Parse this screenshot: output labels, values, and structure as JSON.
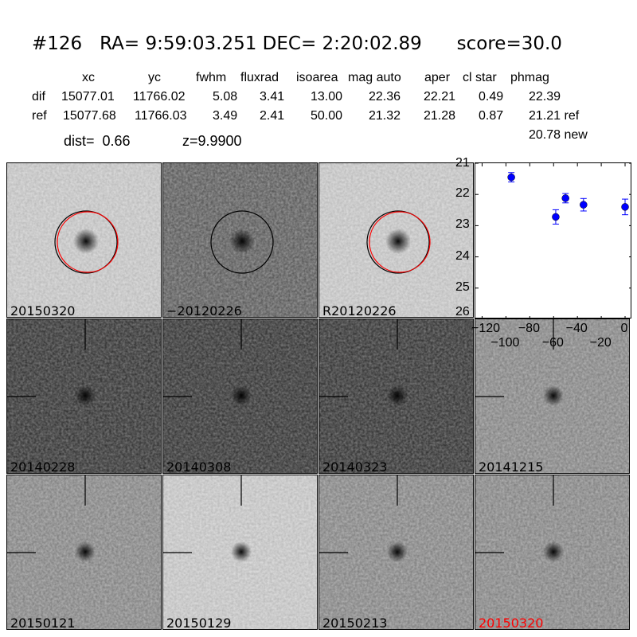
{
  "header": {
    "title": "#126   RA= 9:59:03.251 DEC= 2:20:02.89      score=30.0",
    "columns": [
      "xc",
      "yc",
      "fwhm",
      "fluxrad",
      "isoarea",
      "mag auto",
      "aper",
      "cl star",
      "phmag"
    ],
    "dif": {
      "label": "dif",
      "values": [
        "15077.01",
        "11766.02",
        "5.08",
        "3.41",
        "13.00",
        "22.36",
        "22.21",
        "0.49",
        "22.39"
      ]
    },
    "ref": {
      "label": "ref",
      "values": [
        "15077.68",
        "11766.03",
        "3.49",
        "2.41",
        "50.00",
        "21.32",
        "21.28",
        "0.87",
        "21.21 ref"
      ]
    },
    "new_mag": "20.78 new",
    "dist": "dist=  0.66",
    "z": "z=9.9900"
  },
  "stamps": [
    {
      "label": "20150320",
      "shade": "light",
      "circles": true
    },
    {
      "label": "-20120226",
      "shade": "dif",
      "circles": "black"
    },
    {
      "label": "R20120226",
      "shade": "light",
      "circles": true
    },
    {
      "label": "20140228",
      "shade": "dark"
    },
    {
      "label": "20140308",
      "shade": "dark"
    },
    {
      "label": "20140323",
      "shade": "dark"
    },
    {
      "label": "20141215",
      "shade": "mid"
    },
    {
      "label": "20150121",
      "shade": "mid"
    },
    {
      "label": "20150129",
      "shade": "light"
    },
    {
      "label": "20150213",
      "shade": "mid"
    },
    {
      "label": "20150320",
      "shade": "mid",
      "color": "#ff0000"
    }
  ],
  "chart_data": {
    "type": "scatter",
    "x": [
      -95.5,
      -58.2,
      -50.0,
      -34.9,
      0.0
    ],
    "y": [
      21.45,
      22.72,
      22.12,
      22.33,
      22.4
    ],
    "yerr": [
      0.15,
      0.23,
      0.15,
      0.2,
      0.25
    ],
    "xlim": [
      -125,
      6
    ],
    "ylim": [
      26,
      21
    ],
    "y_inverted": true,
    "xticks": [
      "-120",
      "-100",
      "-80",
      "-60",
      "-40",
      "-20",
      "0"
    ],
    "yticks": [
      "21",
      "22",
      "23",
      "24",
      "25",
      "26"
    ],
    "color": "#0000ff"
  }
}
